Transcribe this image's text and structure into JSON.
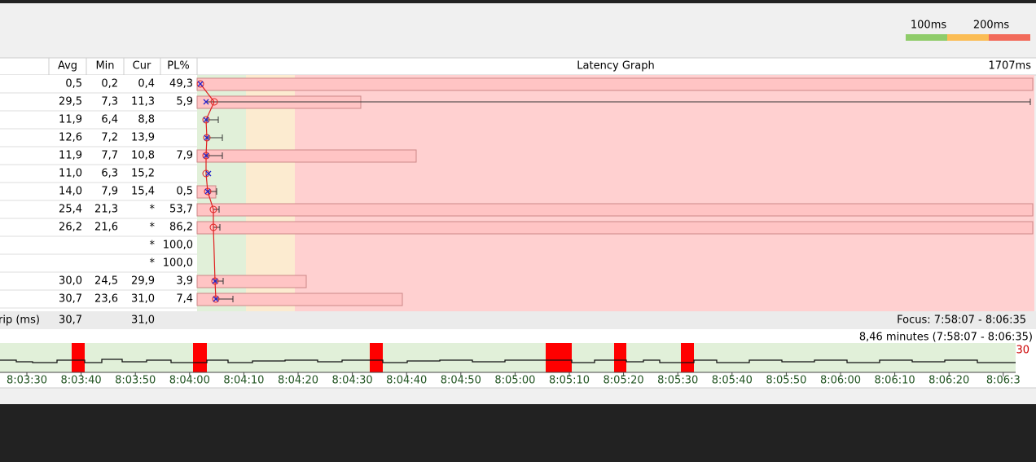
{
  "legend": {
    "labels": [
      "100ms",
      "200ms"
    ]
  },
  "table": {
    "headers": [
      "Avg",
      "Min",
      "Cur",
      "PL%"
    ],
    "graph_title": "Latency Graph",
    "graph_max": "1707ms",
    "rows": [
      [
        "0,5",
        "0,2",
        "0,4",
        "49,3"
      ],
      [
        "29,5",
        "7,3",
        "11,3",
        "5,9"
      ],
      [
        "11,9",
        "6,4",
        "8,8",
        ""
      ],
      [
        "12,6",
        "7,2",
        "13,9",
        ""
      ],
      [
        "11,9",
        "7,7",
        "10,8",
        "7,9"
      ],
      [
        "11,0",
        "6,3",
        "15,2",
        ""
      ],
      [
        "14,0",
        "7,9",
        "15,4",
        "0,5"
      ],
      [
        "25,4",
        "21,3",
        "*",
        "53,7"
      ],
      [
        "26,2",
        "21,6",
        "*",
        "86,2"
      ],
      [
        "",
        "",
        "*",
        "100,0"
      ],
      [
        "",
        "",
        "*",
        "100,0"
      ],
      [
        "30,0",
        "24,5",
        "29,9",
        "3,9"
      ],
      [
        "30,7",
        "23,6",
        "31,0",
        "7,4"
      ]
    ],
    "footer": {
      "label": "rip (ms)",
      "avg": "30,7",
      "cur": "31,0",
      "focus": "Focus: 7:58:07 - 8:06:35"
    }
  },
  "timeline": {
    "summary": "8,46 minutes (7:58:07 - 8:06:35)",
    "max_label": "30",
    "ticks": [
      "8:03:30",
      "8:03:40",
      "8:03:50",
      "8:04:00",
      "8:04:10",
      "8:04:20",
      "8:04:30",
      "8:04:40",
      "8:04:50",
      "8:05:00",
      "8:05:10",
      "8:05:20",
      "8:05:30",
      "8:05:40",
      "8:05:50",
      "8:06:00",
      "8:06:10",
      "8:06:20",
      "8:06:3"
    ]
  }
}
